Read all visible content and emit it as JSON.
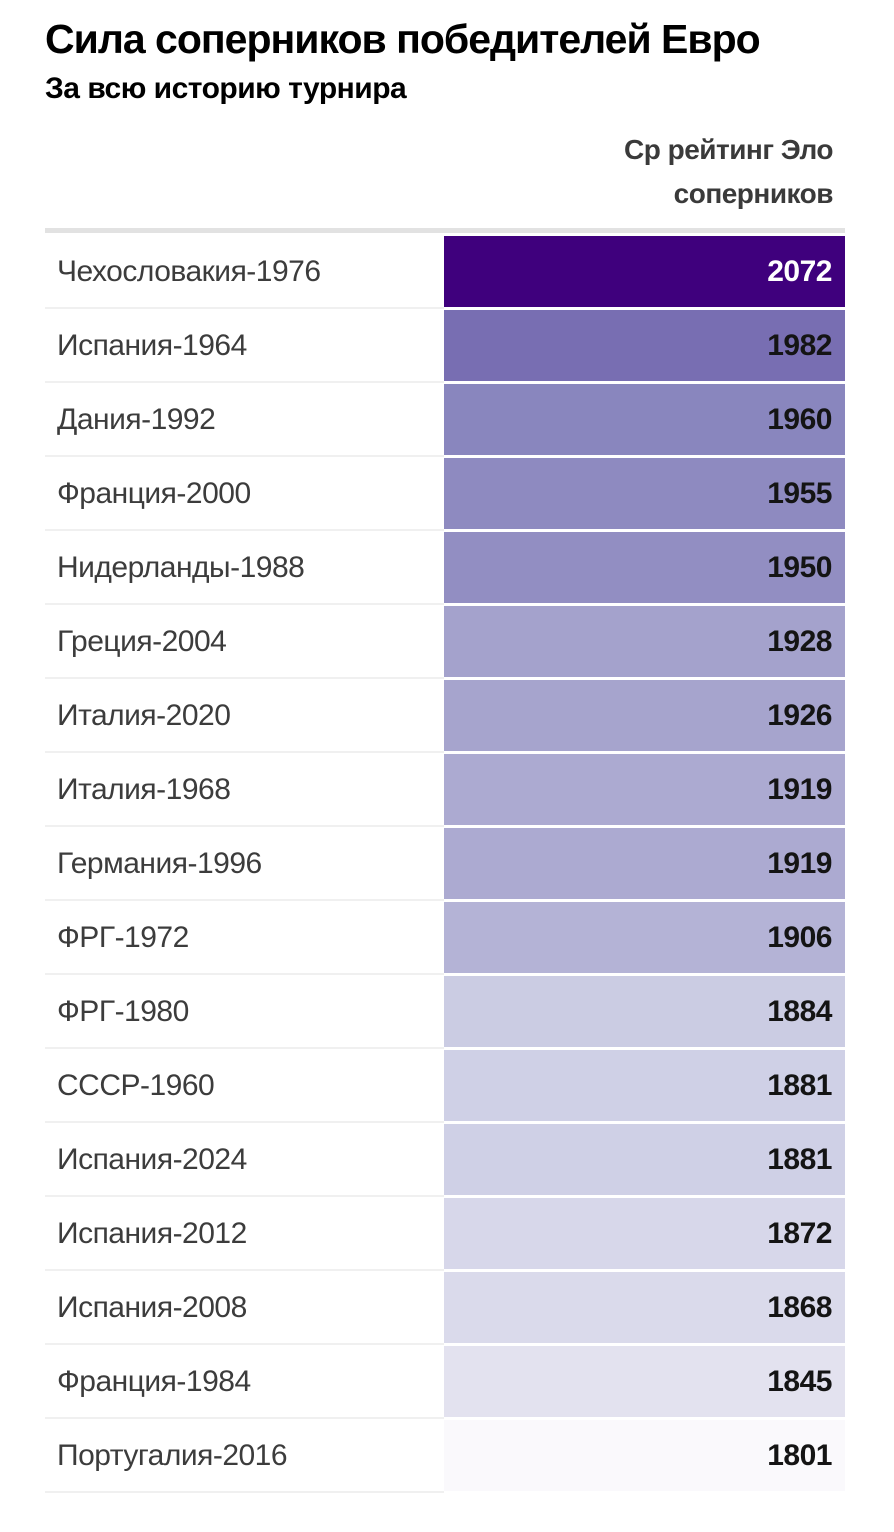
{
  "title": "Сила соперников победителей Евро",
  "subtitle": "За всю историю турнира",
  "column_header": {
    "full": "Ср рейтинг Эло соперников",
    "line1": "Ср рейтинг Эло",
    "line2": "соперников"
  },
  "chart_data": {
    "type": "table",
    "title": "Сила соперников победителей Евро",
    "subtitle": "За всю историю турнира",
    "value_column_header": "Ср рейтинг Эло соперников",
    "categories": [
      "Чехословакия-1976",
      "Испания-1964",
      "Дания-1992",
      "Франция-2000",
      "Нидерланды-1988",
      "Греция-2004",
      "Италия-2020",
      "Италия-1968",
      "Германия-1996",
      "ФРГ-1972",
      "ФРГ-1980",
      "СССР-1960",
      "Испания-2024",
      "Испания-2012",
      "Испания-2008",
      "Франция-1984",
      "Португалия-2016"
    ],
    "values": [
      2072,
      1982,
      1960,
      1955,
      1950,
      1928,
      1926,
      1919,
      1919,
      1906,
      1884,
      1881,
      1881,
      1872,
      1868,
      1845,
      1801
    ],
    "sort": "descending",
    "color_scale": {
      "palette": "Purples",
      "domain": [
        1801,
        2072
      ],
      "min_color": "#fcfbfd",
      "max_color": "#3f007d"
    },
    "cell_colors": [
      "#3f007d",
      "#786eb2",
      "#8986be",
      "#8e8ac0",
      "#928ec2",
      "#a4a2cc",
      "#a6a4cd",
      "#acaad1",
      "#acaad1",
      "#b4b3d6",
      "#cbcce3",
      "#cfd0e6",
      "#cfd0e6",
      "#d7d7ea",
      "#dadaeb",
      "#e3e2ef",
      "#faf9fc"
    ],
    "value_text_colors": [
      "#ffffff",
      "#141414",
      "#141414",
      "#141414",
      "#141414",
      "#141414",
      "#141414",
      "#141414",
      "#141414",
      "#141414",
      "#141414",
      "#141414",
      "#141414",
      "#141414",
      "#141414",
      "#141414",
      "#141414"
    ]
  }
}
